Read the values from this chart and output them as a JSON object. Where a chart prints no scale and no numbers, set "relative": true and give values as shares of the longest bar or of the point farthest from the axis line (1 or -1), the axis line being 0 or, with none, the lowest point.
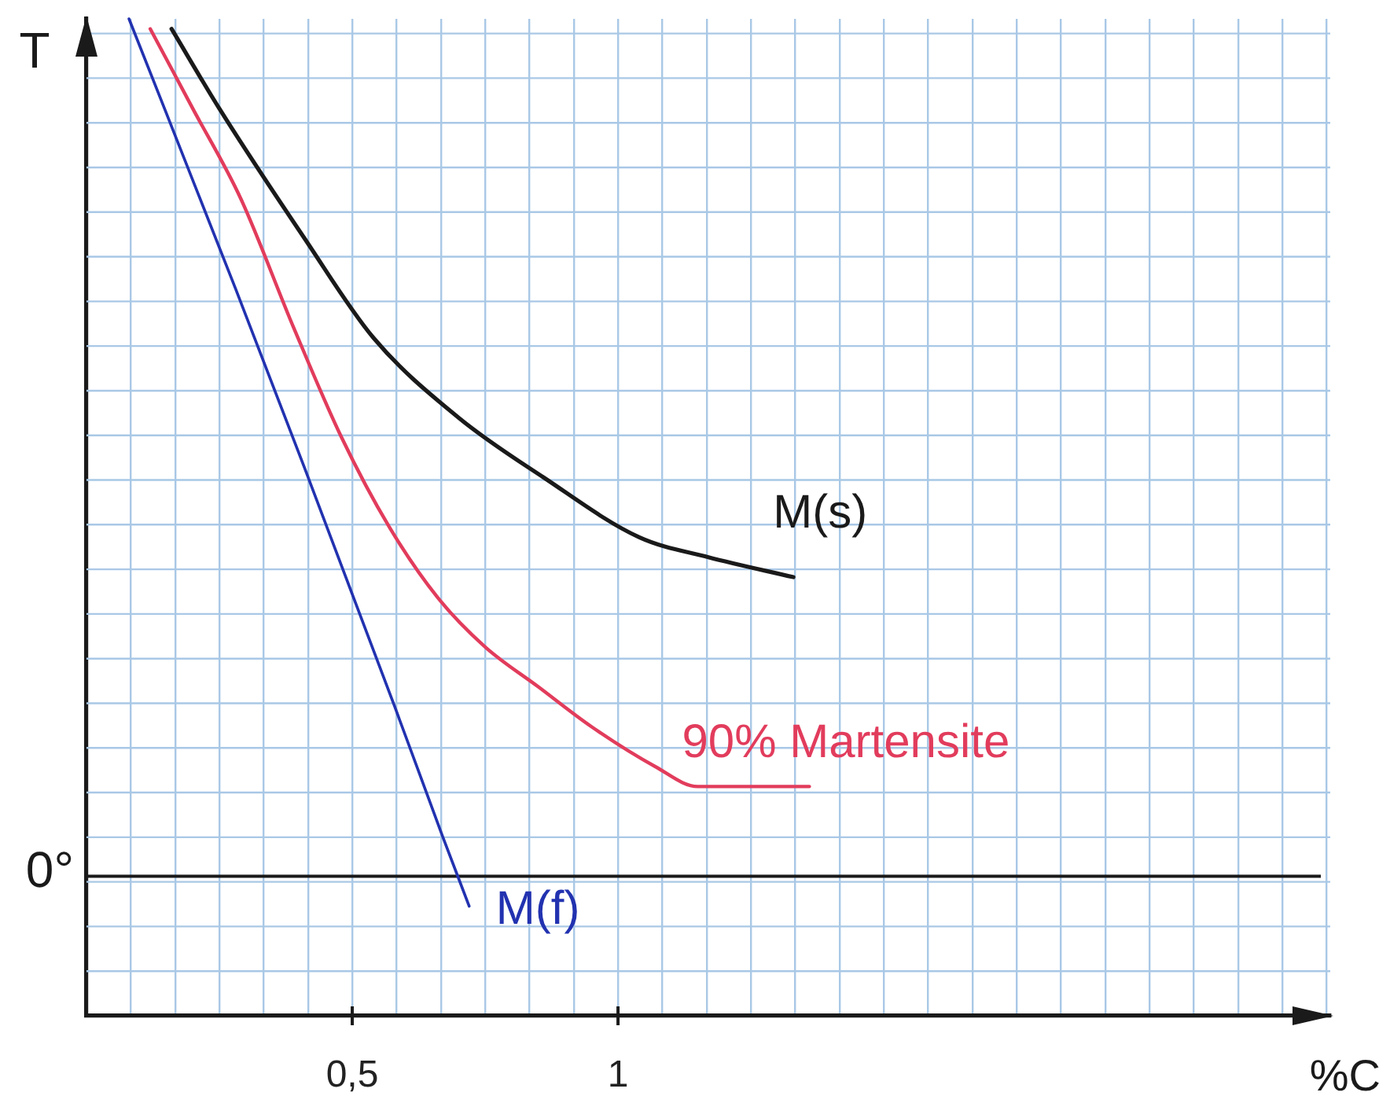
{
  "chart_data": {
    "type": "line",
    "xlabel": "%C",
    "ylabel": "T",
    "relative": true,
    "xlim": [
      0,
      2.34
    ],
    "xticks": [
      {
        "value": 0.083,
        "label": null
      },
      {
        "value": 0.167,
        "label": null
      },
      {
        "value": 0.25,
        "label": null
      },
      {
        "value": 0.333,
        "label": null
      },
      {
        "value": 0.417,
        "label": null
      },
      {
        "value": 0.5,
        "label": "0,5"
      },
      {
        "value": 0.583,
        "label": null
      },
      {
        "value": 0.667,
        "label": null
      },
      {
        "value": 0.75,
        "label": null
      },
      {
        "value": 0.833,
        "label": null
      },
      {
        "value": 0.917,
        "label": null
      },
      1,
      {
        "value": 1.083,
        "label": null
      },
      {
        "value": 1.167,
        "label": null
      },
      {
        "value": 1.25,
        "label": null
      },
      {
        "value": 1.333,
        "label": null
      },
      {
        "value": 1.417,
        "label": null
      },
      {
        "value": 1.5,
        "label": null
      },
      {
        "value": 1.583,
        "label": null
      },
      {
        "value": 1.667,
        "label": null
      },
      {
        "value": 1.75,
        "label": null
      },
      {
        "value": 1.833,
        "label": null
      },
      {
        "value": 1.917,
        "label": null
      },
      {
        "value": 2,
        "label": null
      },
      {
        "value": 2.083,
        "label": null
      },
      {
        "value": 2.167,
        "label": null
      },
      {
        "value": 2.25,
        "label": null
      },
      {
        "value": 2.333,
        "label": null
      }
    ],
    "grid": true,
    "marker": "none",
    "line_style": "solid",
    "ref_lines": [
      {
        "axis": "y",
        "value": 0.14,
        "label": "0°",
        "color": "#1a1a1a"
      }
    ],
    "series": [
      {
        "name": "M(s)",
        "color": "#1a1a1a",
        "x": [
          0.16,
          0.25,
          0.41,
          0.54,
          0.7,
          0.86,
          1.04,
          1.17,
          1.33
        ],
        "values": [
          0.99,
          0.91,
          0.78,
          0.68,
          0.6,
          0.54,
          0.48,
          0.46,
          0.44
        ]
      },
      {
        "name": "90% Martensite",
        "color": "#e23c5c",
        "x": [
          0.12,
          0.2,
          0.29,
          0.39,
          0.48,
          0.57,
          0.66,
          0.75,
          0.85,
          0.95,
          1.07,
          1.15,
          1.36
        ],
        "values": [
          0.99,
          0.91,
          0.82,
          0.69,
          0.58,
          0.49,
          0.42,
          0.37,
          0.33,
          0.29,
          0.25,
          0.23,
          0.23
        ]
      },
      {
        "name": "M(f)",
        "color": "#2232b0",
        "x": [
          0.08,
          0.28,
          0.41,
          0.58,
          0.67,
          0.72
        ],
        "values": [
          1.0,
          0.73,
          0.55,
          0.31,
          0.18,
          0.11
        ]
      }
    ]
  }
}
